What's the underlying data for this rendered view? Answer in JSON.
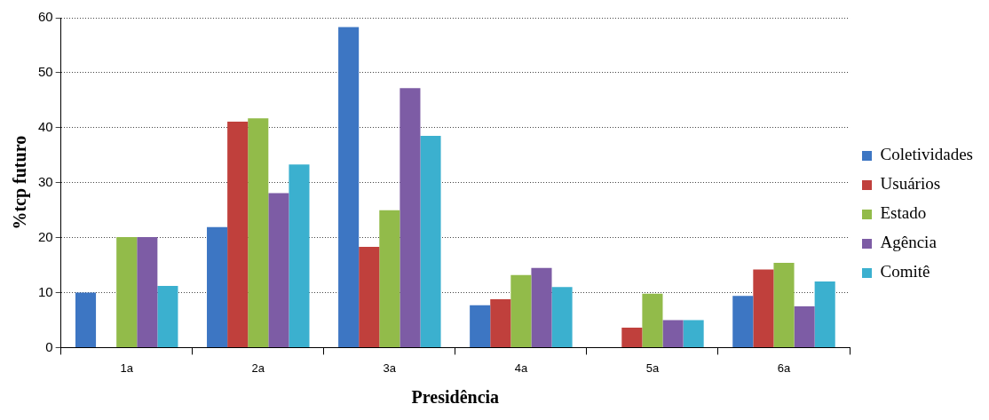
{
  "chart_data": {
    "type": "bar",
    "xlabel": "Presidência",
    "ylabel": "%tcp futuro",
    "categories": [
      "1a",
      "2a",
      "3a",
      "4a",
      "5a",
      "6a"
    ],
    "series": [
      {
        "name": "Coletividades",
        "color": "#3d76c3",
        "values": [
          10,
          21.9,
          58.3,
          7.7,
          0,
          9.4
        ]
      },
      {
        "name": "Usuários",
        "color": "#c0403c",
        "values": [
          0,
          41.1,
          18.3,
          8.8,
          3.6,
          14.2
        ]
      },
      {
        "name": "Estado",
        "color": "#92bb4a",
        "values": [
          20.1,
          41.7,
          25,
          13.2,
          9.8,
          15.4
        ]
      },
      {
        "name": "Agência",
        "color": "#7d5ca5",
        "values": [
          20.1,
          28.1,
          47.2,
          14.5,
          5,
          7.5
        ]
      },
      {
        "name": "Comitê",
        "color": "#3bb0cf",
        "values": [
          11.2,
          33.3,
          38.5,
          11,
          5,
          12
        ]
      }
    ],
    "ylim": [
      0,
      60
    ],
    "yticks": [
      0,
      10,
      20,
      30,
      40,
      50,
      60
    ],
    "grid": "y",
    "legend": "right"
  }
}
